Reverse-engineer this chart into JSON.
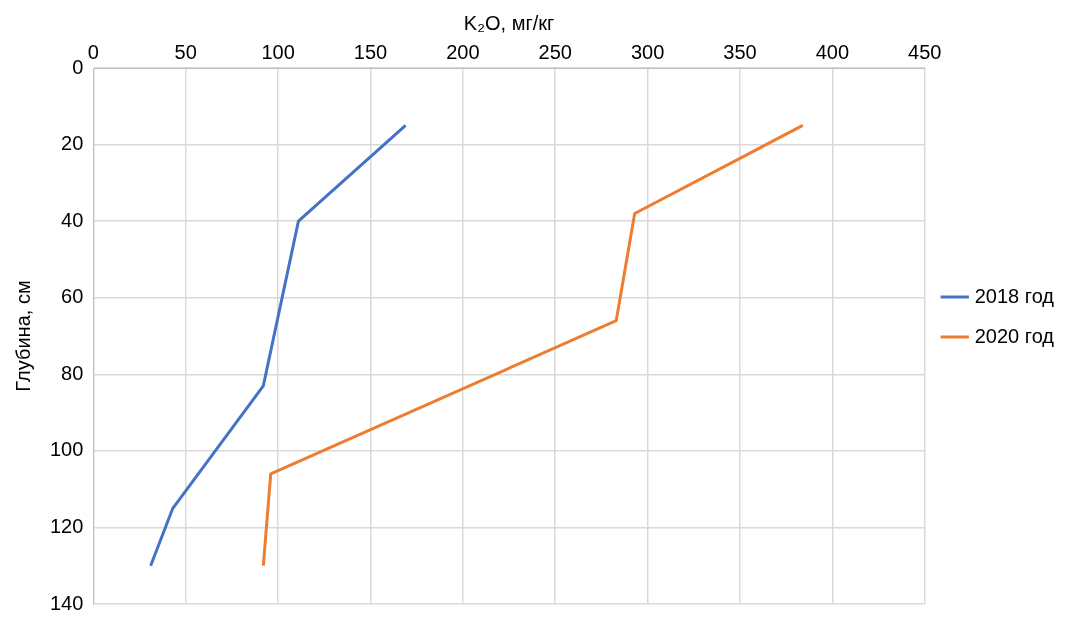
{
  "chart_data": {
    "type": "line",
    "xlabel": "K₂O, мг/кг",
    "ylabel": "Глубина, см",
    "xlim": [
      0,
      450
    ],
    "xticks": [
      0,
      50,
      100,
      150,
      200,
      250,
      300,
      350,
      400,
      450
    ],
    "ylim": [
      140,
      0
    ],
    "yticks": [
      0,
      20,
      40,
      60,
      80,
      100,
      120,
      140
    ],
    "grid": true,
    "legend": "right",
    "marker": "none",
    "line_style": "solid",
    "series": [
      {
        "name": "2018 год",
        "color": "#4472c4",
        "x": [
          169,
          111,
          92,
          43,
          31
        ],
        "values": [
          15,
          40,
          83,
          115,
          130
        ]
      },
      {
        "name": "2020 год",
        "color": "#ed7d31",
        "x": [
          384,
          293,
          283,
          96,
          92
        ],
        "values": [
          15,
          38,
          66,
          106,
          130
        ]
      }
    ]
  }
}
